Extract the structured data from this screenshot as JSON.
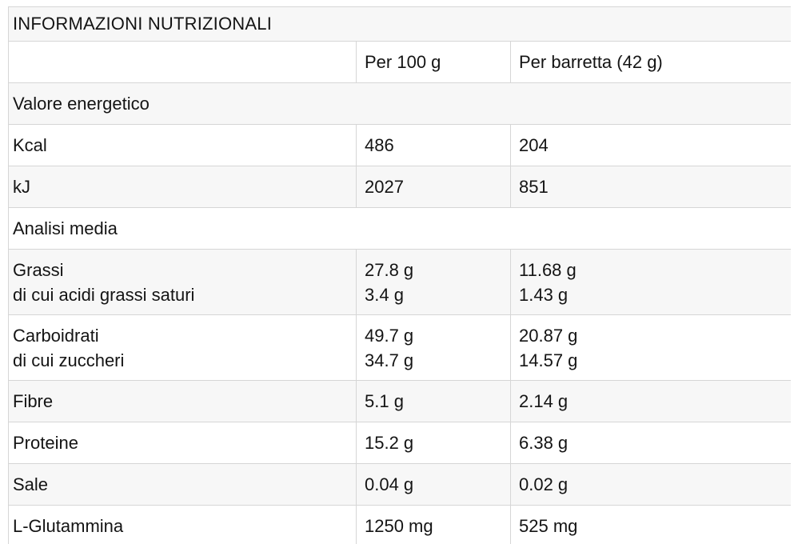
{
  "theme": {
    "stripe": "#f7f7f7",
    "row_white": "#ffffff",
    "border": "#d6d6d6",
    "text": "#141414",
    "page_bg": "#ffffff"
  },
  "table": {
    "title": "INFORMAZIONI NUTRIZIONALI",
    "columns": [
      "",
      "Per 100 g",
      "Per barretta (42 g)"
    ],
    "rows": [
      {
        "type": "section",
        "label": "Valore energetico"
      },
      {
        "type": "data",
        "label": "Kcal",
        "per100": "486",
        "perBar": "204"
      },
      {
        "type": "data",
        "label": "kJ",
        "per100": "2027",
        "perBar": "851"
      },
      {
        "type": "section",
        "label": "Analisi media"
      },
      {
        "type": "data",
        "label": "Grassi",
        "sub": "di cui acidi grassi saturi",
        "per100": "27.8 g",
        "per100_sub": "3.4 g",
        "perBar": "11.68 g",
        "perBar_sub": "1.43 g"
      },
      {
        "type": "data",
        "label": "Carboidrati",
        "sub": "di cui zuccheri",
        "per100": "49.7 g",
        "per100_sub": "34.7 g",
        "perBar": "20.87 g",
        "perBar_sub": "14.57 g"
      },
      {
        "type": "data",
        "label": "Fibre",
        "per100": "5.1 g",
        "perBar": "2.14 g"
      },
      {
        "type": "data",
        "label": "Proteine",
        "per100": "15.2 g",
        "perBar": "6.38 g"
      },
      {
        "type": "data",
        "label": "Sale",
        "per100": "0.04 g",
        "perBar": "0.02 g"
      },
      {
        "type": "data",
        "label": "L-Glutammina",
        "per100": "1250 mg",
        "perBar": "525 mg"
      }
    ]
  }
}
